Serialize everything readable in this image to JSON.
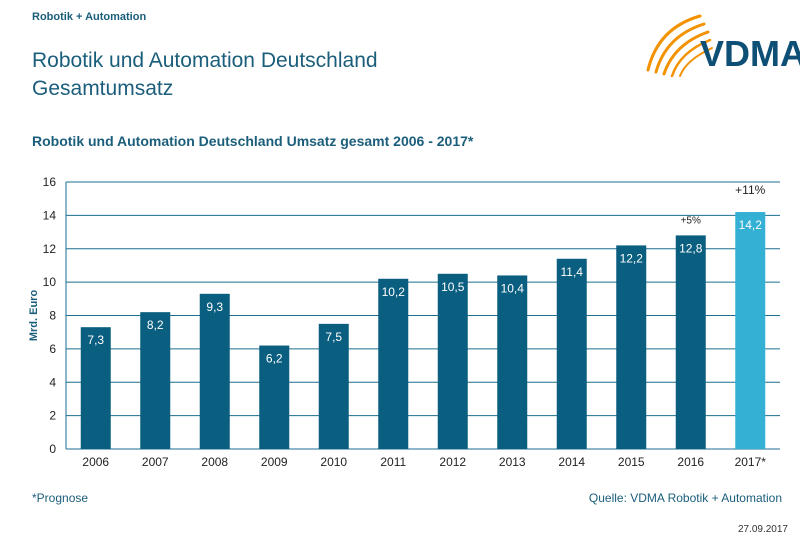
{
  "header": {
    "tag": "Robotik + Automation",
    "title_line1": "Robotik und Automation Deutschland",
    "title_line2": "Gesamtumsatz"
  },
  "logo": {
    "text": "VDMA",
    "icon": "vdma-swoosh-icon"
  },
  "colors": {
    "bar": "#0a5e80",
    "bar_forecast": "#33b0d3",
    "text": "#1b5e7b",
    "grid": "#1b6f90",
    "logo_orange": "#f39200",
    "logo_blue": "#0e4f75"
  },
  "chart_data": {
    "type": "bar",
    "title": "Robotik und Automation Deutschland Umsatz gesamt 2006 - 2017*",
    "categories": [
      "2006",
      "2007",
      "2008",
      "2009",
      "2010",
      "2011",
      "2012",
      "2013",
      "2014",
      "2015",
      "2016",
      "2017*"
    ],
    "values": [
      7.3,
      8.2,
      9.3,
      6.2,
      7.5,
      10.2,
      10.5,
      10.4,
      11.4,
      12.2,
      12.8,
      14.2
    ],
    "value_labels": [
      "7,3",
      "8,2",
      "9,3",
      "6,2",
      "7,5",
      "10,2",
      "10,5",
      "10,4",
      "11,4",
      "12,2",
      "12,8",
      "14,2"
    ],
    "forecast_index": 11,
    "xlabel": "",
    "ylabel": "Mrd. Euro",
    "ylim": [
      0,
      16
    ],
    "yticks": [
      0,
      2,
      4,
      6,
      8,
      10,
      12,
      14,
      16
    ],
    "grid": true,
    "annotations": [
      {
        "category": "2016",
        "text": "+5%"
      },
      {
        "category": "2017*",
        "text": "+11%"
      }
    ]
  },
  "footer": {
    "footnote": "*Prognose",
    "source": "Quelle: VDMA Robotik + Automation",
    "date": "27.09.2017"
  }
}
